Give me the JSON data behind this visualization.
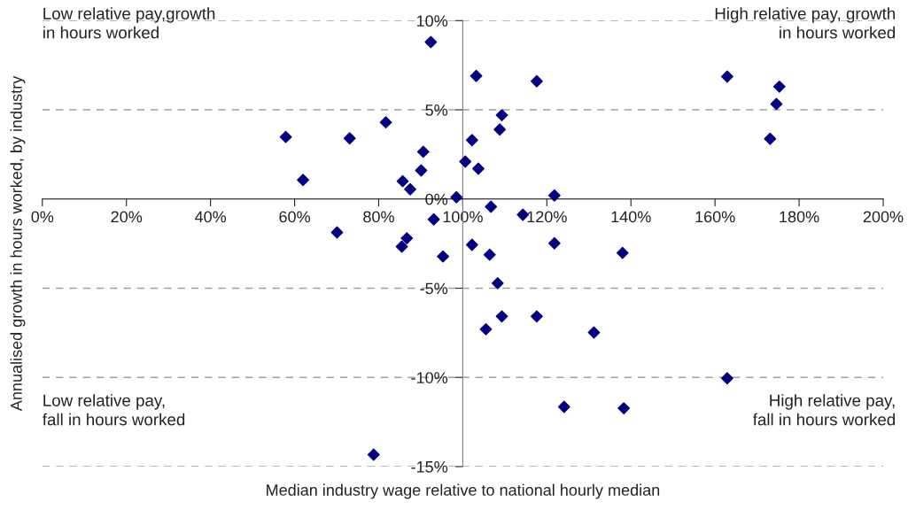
{
  "chart_data": {
    "type": "scatter",
    "xlabel": "Median industry wage relative to national hourly median",
    "ylabel": "Annualised growth in hours worked, by industry",
    "annotations": [
      "Low relative pay,growth\nin hours worked",
      "High relative pay, growth\nin hours worked",
      "Low relative pay,\nfall in hours worked",
      "High relative pay,\nfall in hours worked"
    ],
    "x": [
      92.4,
      103.2,
      117.6,
      109.3,
      108.8,
      81.7,
      73.1,
      102.2,
      90.6,
      100.6,
      103.7,
      90.1,
      62.0,
      85.7,
      87.5,
      98.5,
      121.8,
      106.7,
      114.3,
      93.1,
      57.9,
      70.1,
      86.7,
      85.5,
      95.3,
      102.2,
      106.4,
      121.8,
      138.0,
      108.3,
      109.3,
      117.6,
      105.5,
      131.2,
      124.1,
      138.3,
      78.8,
      162.9,
      175.3,
      174.6,
      173.1,
      162.9
    ],
    "series": [
      {
        "color": "#000080",
        "values": [
          8.8,
          6.9,
          6.6,
          4.7,
          3.9,
          4.3,
          3.4,
          3.3,
          2.65,
          2.1,
          1.7,
          1.6,
          1.07,
          1.0,
          0.55,
          0.1,
          0.2,
          -0.43,
          -0.88,
          -1.14,
          3.48,
          -1.87,
          -2.2,
          -2.67,
          -3.22,
          -2.57,
          -3.12,
          -2.48,
          -3.02,
          -4.72,
          -6.58,
          -6.58,
          -7.3,
          -7.48,
          -11.65,
          -11.73,
          -14.33,
          6.86,
          6.3,
          5.33,
          3.38,
          -10.05
        ]
      }
    ],
    "xlim": [
      0,
      200
    ],
    "ylim": [
      -15,
      10
    ],
    "xticks": [
      {
        "value": 0,
        "label": "0%"
      },
      {
        "value": 20,
        "label": "20%"
      },
      {
        "value": 40,
        "label": "40%"
      },
      {
        "value": 60,
        "label": "60%"
      },
      {
        "value": 80,
        "label": "80%"
      },
      {
        "value": 100,
        "label": "100%"
      },
      {
        "value": 120,
        "label": "120%"
      },
      {
        "value": 140,
        "label": "140%"
      },
      {
        "value": 160,
        "label": "160%"
      },
      {
        "value": 180,
        "label": "180%"
      },
      {
        "value": 200,
        "label": "200%"
      }
    ],
    "yticks": [
      {
        "value": -15,
        "label": "-15%"
      },
      {
        "value": -10,
        "label": "-10%"
      },
      {
        "value": -5,
        "label": "-5%"
      },
      {
        "value": 0,
        "label": "0%"
      },
      {
        "value": 5,
        "label": "5%"
      },
      {
        "value": 10,
        "label": "10%"
      }
    ],
    "grid": "y",
    "marker": "diamond"
  }
}
